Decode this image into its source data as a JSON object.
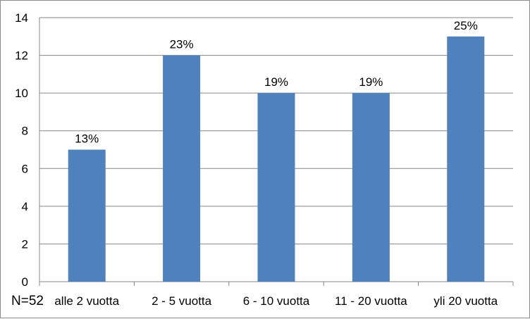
{
  "chart_data": {
    "type": "bar",
    "categories": [
      "alle 2 vuotta",
      "2 - 5 vuotta",
      "6 - 10 vuotta",
      "11 - 20 vuotta",
      "yli 20 vuotta"
    ],
    "values": [
      7,
      12,
      10,
      10,
      13
    ],
    "data_labels": [
      "13%",
      "23%",
      "19%",
      "19%",
      "25%"
    ],
    "note": "N=52",
    "title": "",
    "xlabel": "",
    "ylabel": "",
    "ylim": [
      0,
      14
    ],
    "yticks": [
      "0",
      "2",
      "4",
      "6",
      "8",
      "10",
      "12",
      "14"
    ],
    "grid": true,
    "legend": "none",
    "bar_color": "#4f81bd",
    "grid_color": "#868686"
  }
}
